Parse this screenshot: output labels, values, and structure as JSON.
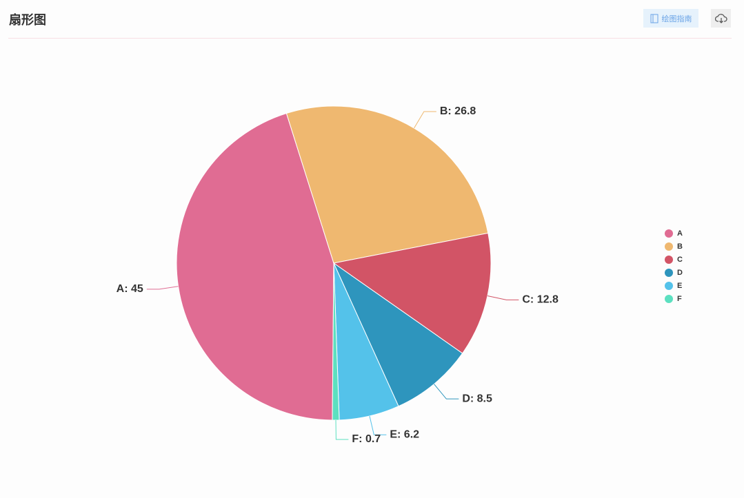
{
  "header": {
    "title": "扇形图",
    "guide_button": "绘图指南"
  },
  "chart_data": {
    "type": "pie",
    "categories": [
      "A",
      "B",
      "C",
      "D",
      "E",
      "F"
    ],
    "values": [
      45,
      26.8,
      12.8,
      8.5,
      6.2,
      0.7
    ],
    "value_labels": [
      "A: 45",
      "B: 26.8",
      "C: 12.8",
      "D: 8.5",
      "E: 6.2",
      "F: 0.7"
    ],
    "colors": [
      "#e06c93",
      "#efb870",
      "#d25466",
      "#2e95bd",
      "#54c2ea",
      "#5ce0c0"
    ],
    "legend": "right"
  }
}
